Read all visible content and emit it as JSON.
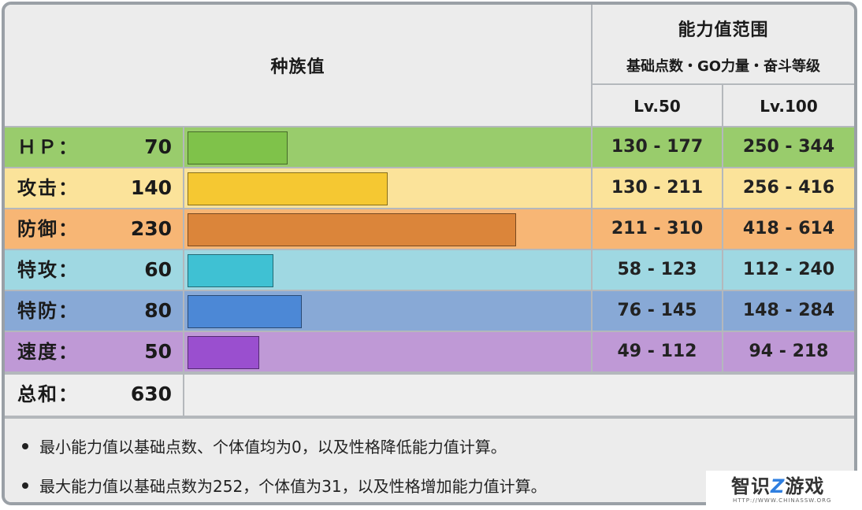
{
  "header": {
    "base_stats_label": "种族值",
    "range_title": "能力值范围",
    "range_subtitle": "基础点数・GO力量・奋斗等级",
    "lv50": "Lv.50",
    "lv100": "Lv.100"
  },
  "stats": [
    {
      "name": "ＨＰ：",
      "value": "70",
      "base": 70,
      "lv50": "130 - 177",
      "lv100": "250 - 344",
      "row_color": "#99cc6c",
      "bar_color": "#7fc24a"
    },
    {
      "name": "攻击：",
      "value": "140",
      "base": 140,
      "lv50": "130 - 211",
      "lv100": "256 - 416",
      "row_color": "#fbe39a",
      "bar_color": "#f5c832"
    },
    {
      "name": "防御：",
      "value": "230",
      "base": 230,
      "lv50": "211 - 310",
      "lv100": "418 - 614",
      "row_color": "#f7b675",
      "bar_color": "#db853a"
    },
    {
      "name": "特攻：",
      "value": "60",
      "base": 60,
      "lv50": "58 - 123",
      "lv100": "112 - 240",
      "row_color": "#9fd8e2",
      "bar_color": "#3fc1d3"
    },
    {
      "name": "特防：",
      "value": "80",
      "base": 80,
      "lv50": "76 - 145",
      "lv100": "148 - 284",
      "row_color": "#88a9d6",
      "bar_color": "#4c88d6"
    },
    {
      "name": "速度：",
      "value": "50",
      "base": 50,
      "lv50": "49 - 112",
      "lv100": "94 - 218",
      "row_color": "#bf99d6",
      "bar_color": "#9a4fcf"
    }
  ],
  "total": {
    "name": "总和：",
    "value": "630"
  },
  "bar_scale_max": 255,
  "notes": [
    "最小能力值以基础点数、个体值均为0，以及性格降低能力值计算。",
    "最大能力值以基础点数为252，个体值为31，以及性格增加能力值计算。"
  ],
  "watermark": {
    "brand_prefix": "智识",
    "brand_z": "Z",
    "brand_suffix": "游戏",
    "url": "HTTP://WWW.CHINASSW.ORG"
  }
}
